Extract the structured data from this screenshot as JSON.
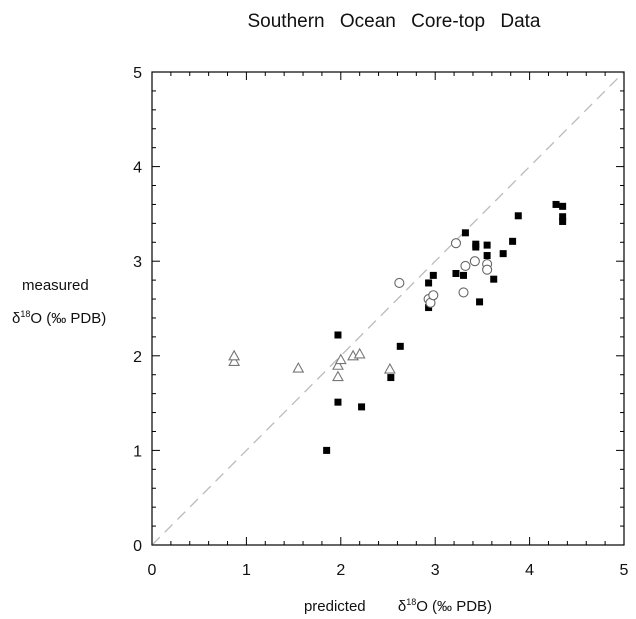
{
  "chart_data": {
    "type": "scatter",
    "title": "Southern   Ocean   Core-top   Data",
    "xlabel": {
      "prefix": "predicted",
      "delta": "δ",
      "sup": "18",
      "suffix": "O  (‰ PDB)"
    },
    "ylabel": {
      "line1": "measured",
      "delta": "δ",
      "sup": "18",
      "suffix": "O  (‰ PDB)"
    },
    "xlim": [
      0,
      5
    ],
    "ylim": [
      0,
      5
    ],
    "x_ticks": [
      "0",
      "1",
      "2",
      "3",
      "4",
      "5"
    ],
    "y_ticks": [
      "0",
      "1",
      "2",
      "3",
      "4",
      "5"
    ],
    "grid": false,
    "reference_line": {
      "style": "dashed",
      "color": "#bbbbbb",
      "from": [
        0,
        0
      ],
      "to": [
        5,
        5
      ]
    },
    "series": [
      {
        "marker": "filled-square",
        "color": "#000000",
        "points": [
          [
            1.97,
            2.22
          ],
          [
            2.63,
            2.1
          ],
          [
            1.97,
            1.51
          ],
          [
            2.22,
            1.46
          ],
          [
            2.53,
            1.77
          ],
          [
            1.85,
            1.0
          ],
          [
            2.93,
            2.77
          ],
          [
            2.98,
            2.85
          ],
          [
            2.93,
            2.51
          ],
          [
            3.22,
            2.87
          ],
          [
            3.3,
            2.85
          ],
          [
            3.32,
            3.3
          ],
          [
            3.43,
            3.18
          ],
          [
            3.43,
            3.15
          ],
          [
            3.47,
            2.57
          ],
          [
            3.55,
            3.17
          ],
          [
            3.55,
            3.06
          ],
          [
            3.62,
            2.81
          ],
          [
            3.72,
            3.08
          ],
          [
            3.82,
            3.21
          ],
          [
            3.88,
            3.48
          ],
          [
            4.28,
            3.6
          ],
          [
            4.35,
            3.58
          ],
          [
            4.35,
            3.47
          ],
          [
            4.35,
            3.42
          ]
        ]
      },
      {
        "marker": "open-circle",
        "color": "#666666",
        "points": [
          [
            2.62,
            2.77
          ],
          [
            2.93,
            2.6
          ],
          [
            2.95,
            2.56
          ],
          [
            2.98,
            2.64
          ],
          [
            3.22,
            3.19
          ],
          [
            3.3,
            2.67
          ],
          [
            3.32,
            2.95
          ],
          [
            3.42,
            3.0
          ],
          [
            3.55,
            2.97
          ],
          [
            3.55,
            2.91
          ]
        ]
      },
      {
        "marker": "open-triangle",
        "color": "#777777",
        "points": [
          [
            0.87,
            1.94
          ],
          [
            0.87,
            2.0
          ],
          [
            1.55,
            1.87
          ],
          [
            1.97,
            1.9
          ],
          [
            1.97,
            1.78
          ],
          [
            2.0,
            1.96
          ],
          [
            2.13,
            2.0
          ],
          [
            2.2,
            2.02
          ],
          [
            2.52,
            1.86
          ]
        ]
      }
    ]
  }
}
